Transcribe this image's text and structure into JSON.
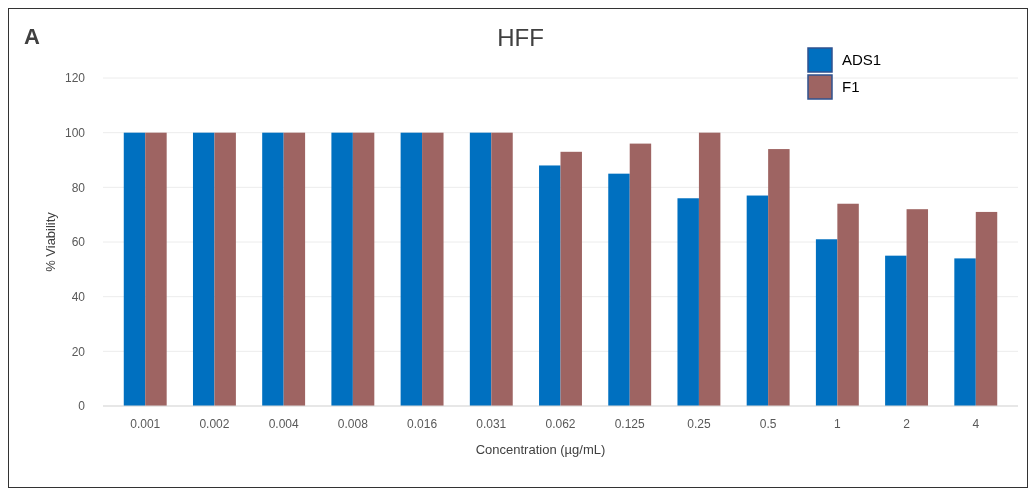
{
  "chart_data": {
    "type": "bar",
    "title": "HFF",
    "xlabel": "Concentration (µg/mL)",
    "ylabel": "% Viability",
    "annotations": [
      "A"
    ],
    "categories": [
      "0.001",
      "0.002",
      "0.004",
      "0.008",
      "0.016",
      "0.031",
      "0.062",
      "0.125",
      "0.25",
      "0.5",
      "1",
      "2",
      "4"
    ],
    "series": [
      {
        "name": "ADS1",
        "color": "#0070c0",
        "values": [
          100,
          100,
          100,
          100,
          100,
          100,
          88,
          85,
          76,
          77,
          61,
          55,
          54
        ]
      },
      {
        "name": "F1",
        "color": "#9e6462",
        "values": [
          100,
          100,
          100,
          100,
          100,
          100,
          93,
          96,
          100,
          94,
          74,
          72,
          71
        ]
      }
    ],
    "ylim": [
      0,
      120
    ],
    "yticks": [
      0,
      20,
      40,
      60,
      80,
      100,
      120
    ],
    "grid": "y",
    "legend": "top right"
  }
}
